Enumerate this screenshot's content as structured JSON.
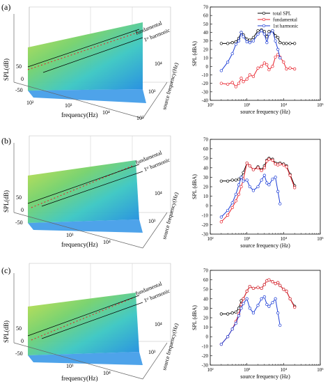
{
  "panels": [
    {
      "label": "(a)",
      "waterfall": {
        "z_axis_label": "SPL(dB)",
        "z_ticks": [
          "50",
          "0",
          "-50"
        ],
        "x_axis_label": "frequency(Hz)",
        "x_ticks": [
          "10²",
          "10³",
          "10⁴",
          "10⁵"
        ],
        "y_axis_label": "source frequency(Hz)",
        "y_ticks": [
          "10⁴",
          "10³"
        ],
        "annotation_fundamental": "fundamental",
        "annotation_harmonic": "1ˢᵗ harmonic"
      }
    },
    {
      "label": "(b)",
      "waterfall": {
        "z_axis_label": "SPL(dB)",
        "z_ticks": [
          "50",
          "0",
          "-50"
        ],
        "x_axis_label": "frequency(Hz)",
        "x_ticks": [
          "10³",
          "10⁴"
        ],
        "y_axis_label": "source frequency(Hz)",
        "y_ticks": [
          "10⁴",
          "10³"
        ],
        "annotation_fundamental": "fundamental",
        "annotation_harmonic": "1ˢᵗ harmonic"
      }
    },
    {
      "label": "(c)",
      "waterfall": {
        "z_axis_label": "SPL(dB)",
        "z_ticks": [
          "50",
          "0",
          "-50"
        ],
        "x_axis_label": "frequency(Hz)",
        "x_ticks": [
          "10³",
          "10⁴"
        ],
        "y_axis_label": "source frequency(Hz)",
        "y_ticks": [
          "10⁴",
          "10³"
        ],
        "annotation_fundamental": "fundamental",
        "annotation_harmonic": "1ˢᵗ harmonic"
      }
    }
  ],
  "chart_data": [
    {
      "type": "line",
      "panel": "(a)",
      "xlabel": "source frequency (Hz)",
      "ylabel": "SPL (dBA)",
      "xscale": "log",
      "xlim": [
        100,
        100000
      ],
      "x_tick_labels": [
        "10²",
        "10³",
        "10⁴",
        "10⁵"
      ],
      "ylim": [
        -40,
        70
      ],
      "yticks": [
        -40,
        -30,
        -20,
        -10,
        0,
        10,
        20,
        30,
        40,
        50,
        60,
        70
      ],
      "legend": "top-right",
      "x": [
        200,
        300,
        400,
        500,
        600,
        700,
        800,
        1000,
        1200,
        1500,
        2000,
        2500,
        3000,
        3500,
        4000,
        5000,
        6000,
        7000,
        8000,
        10000,
        12000,
        15000,
        20000
      ],
      "series": [
        {
          "name": "total SPL",
          "color": "#000000",
          "values": [
            27,
            27,
            28,
            29,
            33,
            40,
            37,
            32,
            31,
            34,
            42,
            43,
            41,
            35,
            41,
            42,
            36,
            34,
            28,
            27,
            27,
            27,
            27
          ]
        },
        {
          "name": "fundamental",
          "color": "#e8202a",
          "values": [
            -20,
            -21,
            -19,
            -24,
            -20,
            -14,
            -18,
            -15,
            -10,
            -12,
            -2,
            0,
            4,
            2,
            -4,
            0,
            11,
            14,
            11,
            5,
            -3,
            -2,
            -3
          ]
        },
        {
          "name": "1st harmonic",
          "color": "#1a3bd6",
          "values": [
            -5,
            5,
            15,
            26,
            30,
            40,
            35,
            29,
            28,
            30,
            38,
            42,
            38,
            28,
            38,
            42,
            30,
            20,
            10,
            null,
            null,
            null,
            null
          ]
        }
      ]
    },
    {
      "type": "line",
      "panel": "(b)",
      "xlabel": "source frequency (Hz)",
      "ylabel": "SPL (dBA)",
      "xscale": "log",
      "xlim": [
        100,
        100000
      ],
      "x_tick_labels": [
        "10²",
        "10³",
        "10⁴",
        "10⁵"
      ],
      "ylim": [
        -30,
        70
      ],
      "yticks": [
        -30,
        -20,
        -10,
        0,
        10,
        20,
        30,
        40,
        50,
        60,
        70
      ],
      "x": [
        200,
        300,
        400,
        500,
        600,
        700,
        800,
        1000,
        1200,
        1500,
        2000,
        2500,
        3000,
        3500,
        4000,
        5000,
        6000,
        7000,
        8000,
        10000,
        12000,
        15000,
        20000
      ],
      "series": [
        {
          "name": "total SPL",
          "color": "#000000",
          "values": [
            26,
            26,
            27,
            27,
            28,
            30,
            35,
            45,
            42,
            38,
            41,
            38,
            42,
            48,
            50,
            49,
            45,
            44,
            45,
            44,
            42,
            33,
            21
          ]
        },
        {
          "name": "fundamental",
          "color": "#e8202a",
          "values": [
            -17,
            -10,
            -2,
            5,
            12,
            20,
            28,
            45,
            42,
            38,
            40,
            37,
            40,
            47,
            49,
            48,
            44,
            43,
            44,
            43,
            41,
            32,
            19
          ]
        },
        {
          "name": "1st harmonic",
          "color": "#1a3bd6",
          "values": [
            -12,
            -5,
            3,
            12,
            22,
            30,
            26,
            27,
            20,
            16,
            20,
            27,
            32,
            24,
            22,
            28,
            30,
            15,
            2,
            null,
            null,
            null,
            null
          ]
        }
      ]
    },
    {
      "type": "line",
      "panel": "(c)",
      "xlabel": "source frequency (Hz)",
      "ylabel": "SPL (dBA)",
      "xscale": "log",
      "xlim": [
        100,
        100000
      ],
      "x_tick_labels": [
        "10²",
        "10³",
        "10⁴",
        "10⁵"
      ],
      "ylim": [
        -30,
        70
      ],
      "yticks": [
        -30,
        -20,
        -10,
        0,
        10,
        20,
        30,
        40,
        50,
        60,
        70
      ],
      "x": [
        200,
        300,
        400,
        500,
        600,
        700,
        800,
        1000,
        1200,
        1500,
        2000,
        2500,
        3000,
        3500,
        4000,
        5000,
        6000,
        7000,
        8000,
        10000,
        12000,
        15000,
        20000
      ],
      "series": [
        {
          "name": "total SPL",
          "color": "#000000",
          "values": [
            24,
            24,
            25,
            26,
            30,
            38,
            40,
            48,
            53,
            51,
            52,
            51,
            55,
            59,
            60,
            58,
            56,
            57,
            54,
            50,
            48,
            40,
            32
          ]
        },
        {
          "name": "fundamental",
          "color": "#e8202a",
          "values": [
            -8,
            0,
            8,
            16,
            24,
            34,
            40,
            48,
            53,
            51,
            52,
            51,
            55,
            59,
            60,
            58,
            56,
            57,
            54,
            50,
            48,
            40,
            31
          ]
        },
        {
          "name": "1st harmonic",
          "color": "#1a3bd6",
          "values": [
            -8,
            0,
            8,
            14,
            22,
            30,
            35,
            40,
            30,
            25,
            33,
            40,
            42,
            34,
            32,
            36,
            40,
            25,
            12,
            null,
            null,
            null,
            null
          ]
        }
      ]
    }
  ]
}
